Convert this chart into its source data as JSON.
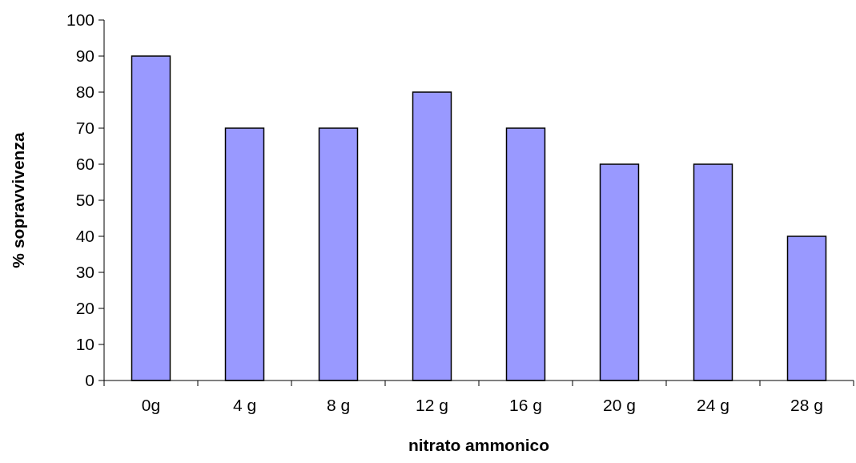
{
  "chart_data": {
    "type": "bar",
    "xlabel": "nitrato ammonico",
    "ylabel": "% sopravvivenza",
    "categories": [
      "0g",
      "4 g",
      "8 g",
      "12 g",
      "16 g",
      "20 g",
      "24 g",
      "28 g"
    ],
    "values": [
      90,
      70,
      70,
      80,
      70,
      60,
      60,
      40
    ],
    "color": "#9999ff",
    "ylim": [
      0,
      100
    ],
    "yticks": [
      0,
      10,
      20,
      30,
      40,
      50,
      60,
      70,
      80,
      90,
      100
    ],
    "grid": false
  }
}
